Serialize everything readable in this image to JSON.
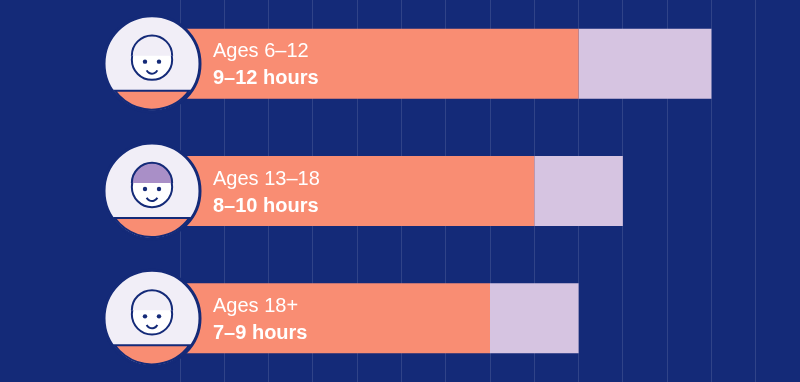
{
  "chart_data": {
    "type": "bar",
    "orientation": "horizontal",
    "stacked": true,
    "categories": [
      "Ages 6–12",
      "Ages 13–18",
      "Ages 18+"
    ],
    "series": [
      {
        "color": "#f98d73",
        "values": [
          9,
          8,
          7
        ]
      },
      {
        "color": "#d6c4e1",
        "values": [
          3,
          2,
          2
        ]
      }
    ],
    "data_labels": true,
    "value_labels": [
      "9–12 hours",
      "8–10 hours",
      "7–9 hours"
    ],
    "xlim": [
      0,
      14
    ],
    "xticks": [
      0,
      1,
      2,
      3,
      4,
      5,
      6,
      7,
      8,
      9,
      10,
      11,
      12,
      13,
      14
    ],
    "grid": true,
    "tick_labels": false
  }
}
